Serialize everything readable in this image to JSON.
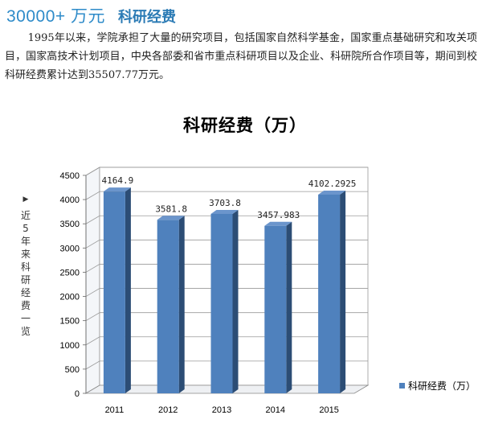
{
  "header": {
    "big_number": "30000+ 万元",
    "title": "科研经费"
  },
  "intro_text": "1995年以来，学院承担了大量的研究项目，包括国家自然科学基金，国家重点基础研究和攻关项目，国家高技术计划项目，中央各部委和省市重点科研项目以及企业、科研院所合作项目等，期间到校科研经费累计达到35507.77万元。",
  "side_label": {
    "arrow": "▶",
    "text": "近5年来科研经费一览"
  },
  "colors": {
    "bar_front": "#4f81bd",
    "bar_side": "#2c4d75",
    "bar_top": "#6b95cc",
    "accent": "#2e8bc9"
  },
  "chart_data": {
    "type": "bar",
    "title": "科研经费（万）",
    "categories": [
      "2011",
      "2012",
      "2013",
      "2014",
      "2015"
    ],
    "series": [
      {
        "name": "科研经费（万）",
        "values": [
          4164.9,
          3581.8,
          3703.8,
          3457.983,
          4102.2925
        ],
        "labels": [
          "4164.9",
          "3581.8",
          "3703.8",
          "3457.983",
          "4102.2925"
        ]
      }
    ],
    "yticks": [
      "0",
      "500",
      "1000",
      "1500",
      "2000",
      "2500",
      "3000",
      "3500",
      "4000",
      "4500"
    ],
    "ylim": [
      0,
      4500
    ],
    "grid": true,
    "legend": "right",
    "style": "3d"
  }
}
